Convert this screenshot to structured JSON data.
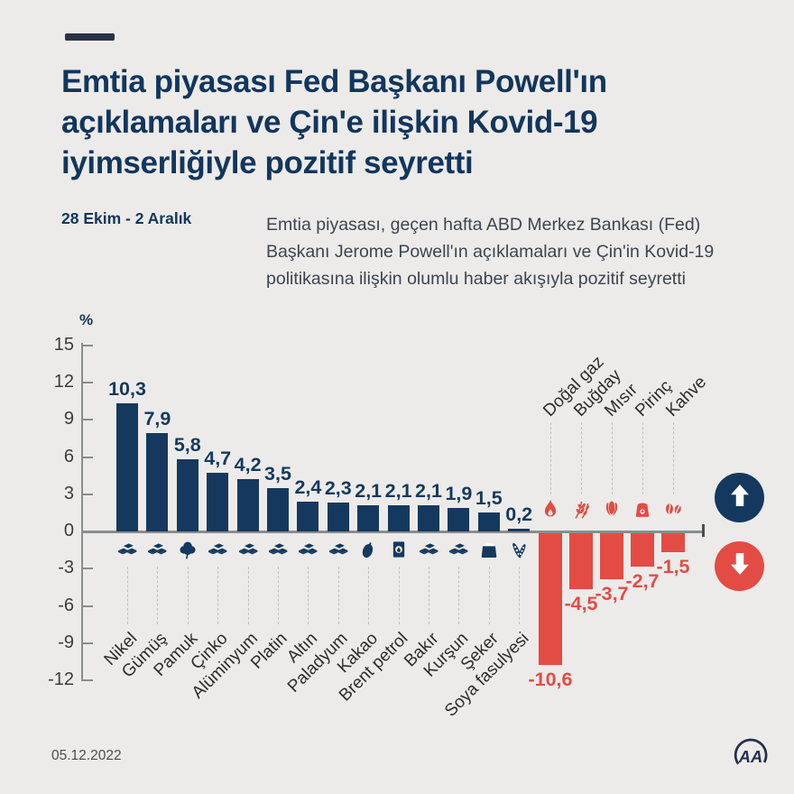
{
  "header": {
    "title_lines": [
      "Emtia piyasası Fed Başkanı Powell'ın",
      "açıklamaları ve Çin'e ilişkin Kovid-19",
      "iyimserliğiyle pozitif seyretti"
    ],
    "date_range": "28 Ekim - 2 Aralık",
    "intro": "Emtia piyasası, geçen hafta ABD Merkez Bankası (Fed) Başkanı Jerome Powell'ın açıklamaları ve Çin'in Kovid-19 politikasına ilişkin olumlu haber akışıyla pozitif seyretti"
  },
  "chart_data": {
    "type": "bar",
    "unit_label": "%",
    "ylim": [
      -12,
      15
    ],
    "y_ticks": [
      15,
      12,
      9,
      6,
      3,
      0,
      -3,
      -6,
      -9,
      -12
    ],
    "grid": false,
    "colors": {
      "positive": "#15395e",
      "negative": "#e24c44"
    },
    "bars": [
      {
        "name": "Nikel",
        "value": 10.3,
        "label": "10,3",
        "icon": "metal-ingots-icon"
      },
      {
        "name": "Gümüş",
        "value": 7.9,
        "label": "7,9",
        "icon": "metal-ingots-icon"
      },
      {
        "name": "Pamuk",
        "value": 5.8,
        "label": "5,8",
        "icon": "cotton-icon"
      },
      {
        "name": "Çinko",
        "value": 4.7,
        "label": "4,7",
        "icon": "metal-ingots-icon"
      },
      {
        "name": "Alüminyum",
        "value": 4.2,
        "label": "4,2",
        "icon": "metal-ingots-icon"
      },
      {
        "name": "Platin",
        "value": 3.5,
        "label": "3,5",
        "icon": "metal-ingots-icon"
      },
      {
        "name": "Altın",
        "value": 2.4,
        "label": "2,4",
        "icon": "metal-ingots-icon"
      },
      {
        "name": "Paladyum",
        "value": 2.3,
        "label": "2,3",
        "icon": "metal-ingots-icon"
      },
      {
        "name": "Kakao",
        "value": 2.1,
        "label": "2,1",
        "icon": "cacao-pod-icon"
      },
      {
        "name": "Brent petrol",
        "value": 2.1,
        "label": "2,1",
        "icon": "oil-barrel-icon"
      },
      {
        "name": "Bakır",
        "value": 2.1,
        "label": "2,1",
        "icon": "metal-ingots-icon"
      },
      {
        "name": "Kurşun",
        "value": 1.9,
        "label": "1,9",
        "icon": "metal-ingots-icon"
      },
      {
        "name": "Şeker",
        "value": 1.5,
        "label": "1,5",
        "icon": "sugar-sack-icon"
      },
      {
        "name": "Soya fasulyesi",
        "value": 0.2,
        "label": "0,2",
        "icon": "soybean-pods-icon"
      },
      {
        "name": "Doğal gaz",
        "value": -10.6,
        "label": "-10,6",
        "icon": "flame-icon"
      },
      {
        "name": "Buğday",
        "value": -4.5,
        "label": "-4,5",
        "icon": "wheat-icon"
      },
      {
        "name": "Mısır",
        "value": -3.7,
        "label": "-3,7",
        "icon": "corn-icon"
      },
      {
        "name": "Pirinç",
        "value": -2.7,
        "label": "-2,7",
        "icon": "rice-sack-icon"
      },
      {
        "name": "Kahve",
        "value": -1.5,
        "label": "-1,5",
        "icon": "coffee-beans-icon"
      }
    ]
  },
  "legend": {
    "up_icon": "up-arrow-icon",
    "down_icon": "down-arrow-icon"
  },
  "footer": {
    "date": "05.12.2022",
    "logo_text": "AA"
  }
}
